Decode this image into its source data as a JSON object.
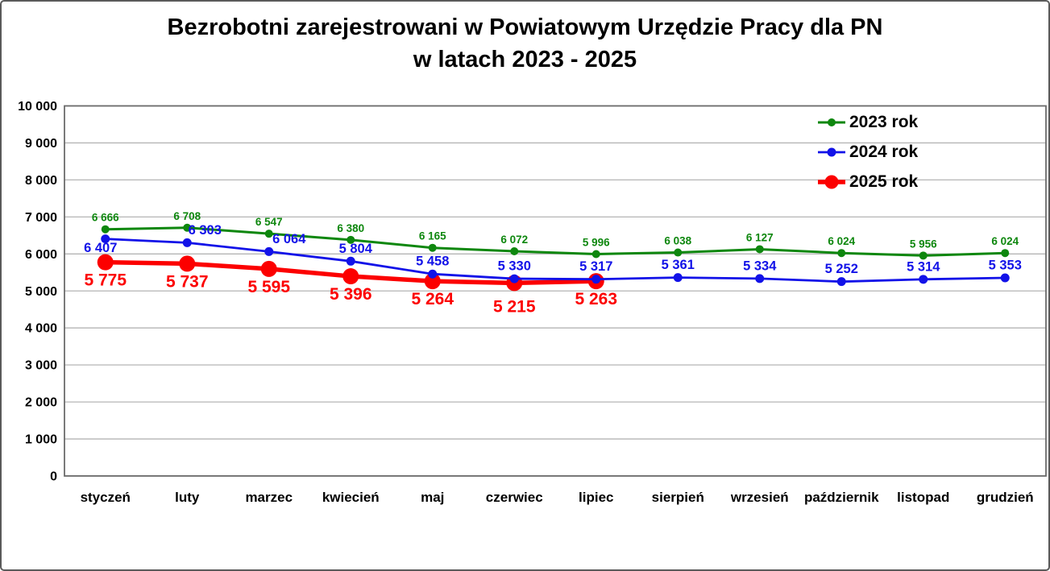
{
  "title": {
    "line1": "Bezrobotni zarejestrowani w Powiatowym Urzędzie Pracy dla PN",
    "line2": "w latach 2023 - 2025"
  },
  "chart_data": {
    "type": "line",
    "title": "Bezrobotni zarejestrowani w Powiatowym Urzędzie Pracy dla PN w latach 2023 - 2025",
    "categories": [
      "styczeń",
      "luty",
      "marzec",
      "kwiecień",
      "maj",
      "czerwiec",
      "lipiec",
      "sierpień",
      "wrzesień",
      "październik",
      "listopad",
      "grudzień"
    ],
    "series": [
      {
        "name": "2023 rok",
        "color": "#0e870e",
        "values": [
          6666,
          6708,
          6547,
          6380,
          6165,
          6072,
          5996,
          6038,
          6127,
          6024,
          5956,
          6024
        ],
        "marker_radius": 5,
        "line_width": 3,
        "label_size": 13.5,
        "label_position": "above",
        "label_offsets": {}
      },
      {
        "name": "2024 rok",
        "color": "#1212e8",
        "values": [
          6407,
          6303,
          6064,
          5804,
          5458,
          5330,
          5317,
          5361,
          5334,
          5252,
          5314,
          5353
        ],
        "marker_radius": 5.5,
        "line_width": 2.8,
        "label_size": 16.5,
        "label_position": "above",
        "label_offsets": {
          "0": {
            "dx": -6,
            "dy": 27
          },
          "1": {
            "dx": 22,
            "dy": 0
          },
          "2": {
            "dx": 25,
            "dy": 0
          },
          "3": {
            "dx": 6,
            "dy": 0
          }
        }
      },
      {
        "name": "2025 rok",
        "color": "#fc0000",
        "values": [
          5775,
          5737,
          5595,
          5396,
          5264,
          5215,
          5263
        ],
        "marker_radius": 10,
        "line_width": 5.5,
        "label_size": 21,
        "label_position": "below",
        "label_offsets": {
          "5": {
            "dx": 0,
            "dy": 7
          }
        }
      }
    ],
    "ylim": [
      0,
      10000
    ],
    "ytick_step": 1000,
    "ytick_labels": [
      "0",
      "1 000",
      "2 000",
      "3 000",
      "4 000",
      "5 000",
      "6 000",
      "7 000",
      "8 000",
      "9 000",
      "10 000"
    ],
    "grid": true,
    "gridline_color": "#b5b5b5",
    "plot_border_color": "#6b6b6b",
    "legend_position": "top-right",
    "number_format": "space-thousands",
    "axis_label_color": "#000000"
  }
}
